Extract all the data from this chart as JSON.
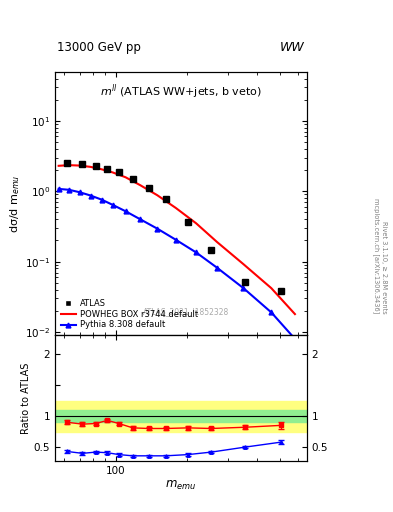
{
  "title_top": "13000 GeV pp",
  "title_top_right": "WW",
  "main_title": "$m^{ll}$ (ATLAS WW+jets, b veto)",
  "watermark": "ATLAS_2021_I1852328",
  "right_label": "Rivet 3.1.10, ≥ 2.8M events\nmcplots.cern.ch [arXiv:1306.3436]",
  "xlabel": "$m_{emu}$",
  "ylabel_main": "dσ/d m$_{emu}$",
  "ylabel_ratio": "Ratio to ATLAS",
  "xlim": [
    55,
    650
  ],
  "ylim_main": [
    0.009,
    50
  ],
  "ylim_ratio": [
    0.28,
    2.3
  ],
  "atlas_x": [
    62,
    72,
    82,
    92,
    103,
    118,
    138,
    163,
    203,
    255,
    355,
    505
  ],
  "atlas_y": [
    2.5,
    2.45,
    2.3,
    2.1,
    1.85,
    1.5,
    1.1,
    0.78,
    0.37,
    0.148,
    0.052,
    0.038
  ],
  "powheg_x": [
    57,
    63,
    70,
    78,
    87,
    97,
    110,
    127,
    150,
    180,
    220,
    270,
    350,
    460,
    580
  ],
  "powheg_y": [
    2.3,
    2.35,
    2.32,
    2.22,
    2.05,
    1.85,
    1.58,
    1.22,
    0.88,
    0.58,
    0.35,
    0.19,
    0.092,
    0.042,
    0.018
  ],
  "pythia_x": [
    57,
    63,
    70,
    78,
    87,
    97,
    110,
    127,
    150,
    180,
    220,
    270,
    350,
    460,
    580
  ],
  "pythia_y": [
    1.08,
    1.05,
    0.97,
    0.87,
    0.76,
    0.64,
    0.52,
    0.4,
    0.295,
    0.205,
    0.135,
    0.082,
    0.042,
    0.019,
    0.008
  ],
  "ratio_x": [
    62,
    72,
    82,
    92,
    103,
    118,
    138,
    163,
    203,
    255,
    355,
    505
  ],
  "ratio_powheg": [
    0.9,
    0.87,
    0.88,
    0.93,
    0.88,
    0.81,
    0.8,
    0.8,
    0.81,
    0.8,
    0.82,
    0.85
  ],
  "ratio_powheg_err": [
    0.03,
    0.03,
    0.03,
    0.03,
    0.03,
    0.03,
    0.03,
    0.03,
    0.03,
    0.03,
    0.03,
    0.06
  ],
  "ratio_pythia": [
    0.43,
    0.4,
    0.42,
    0.41,
    0.38,
    0.36,
    0.36,
    0.36,
    0.38,
    0.42,
    0.5,
    0.58
  ],
  "ratio_pythia_err": [
    0.02,
    0.02,
    0.02,
    0.02,
    0.02,
    0.02,
    0.02,
    0.02,
    0.02,
    0.02,
    0.02,
    0.03
  ],
  "band_green_lo": 0.9,
  "band_green_hi": 1.1,
  "band_yellow_lo": 0.75,
  "band_yellow_hi": 1.25,
  "color_atlas": "black",
  "color_powheg": "red",
  "color_pythia": "blue",
  "color_green_band": "#90EE90",
  "color_yellow_band": "#FFFF80",
  "legend_labels": [
    "ATLAS",
    "POWHEG BOX r3744 default",
    "Pythia 8.308 default"
  ]
}
